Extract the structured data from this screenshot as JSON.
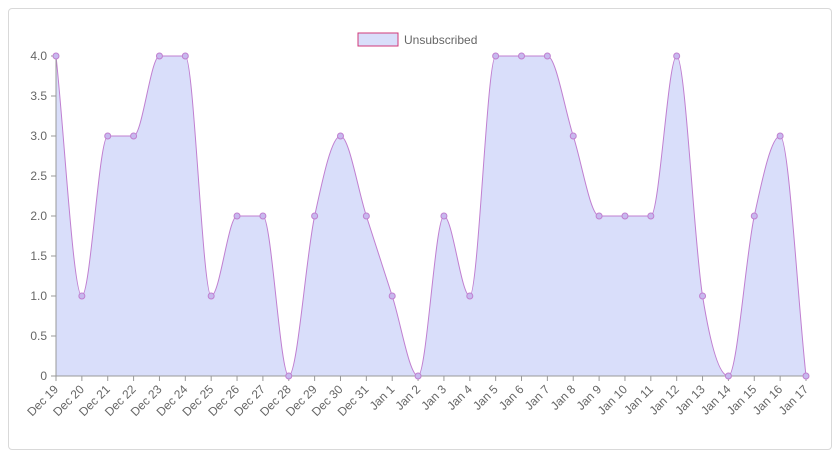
{
  "chart_data": {
    "type": "area",
    "x": [
      "Dec 19",
      "Dec 20",
      "Dec 21",
      "Dec 22",
      "Dec 23",
      "Dec 24",
      "Dec 25",
      "Dec 26",
      "Dec 27",
      "Dec 28",
      "Dec 29",
      "Dec 30",
      "Dec 31",
      "Jan 1",
      "Jan 2",
      "Jan 3",
      "Jan 4",
      "Jan 5",
      "Jan 6",
      "Jan 7",
      "Jan 8",
      "Jan 9",
      "Jan 10",
      "Jan 11",
      "Jan 12",
      "Jan 13",
      "Jan 14",
      "Jan 15",
      "Jan 16",
      "Jan 17"
    ],
    "series": [
      {
        "name": "Unsubscribed",
        "values": [
          4,
          1,
          3,
          3,
          4,
          4,
          1,
          2,
          2,
          0,
          2,
          3,
          2,
          1,
          0,
          2,
          1,
          4,
          4,
          4,
          3,
          2,
          2,
          2,
          4,
          1,
          0,
          2,
          3,
          0
        ]
      }
    ],
    "ylim": [
      0,
      4.0
    ],
    "yticks": [
      "0",
      "0.5",
      "1.0",
      "1.5",
      "2.0",
      "2.5",
      "3.0",
      "3.5",
      "4.0"
    ],
    "legend": "top",
    "grid": false,
    "colors": {
      "fill": "#d9defa",
      "line": "#c07fd0",
      "point": "#c7b9ee",
      "legend_border": "#d1397a"
    }
  }
}
